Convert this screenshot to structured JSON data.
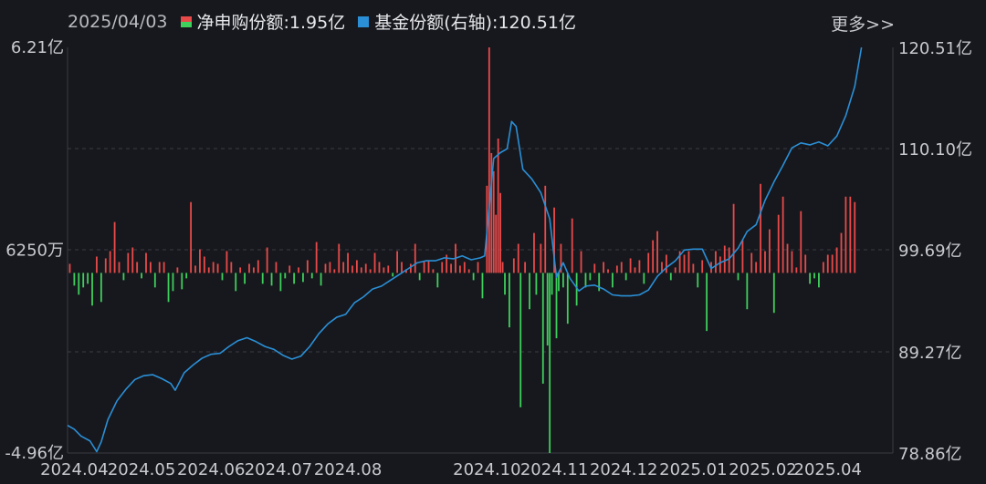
{
  "header": {
    "date": "2025/04/03",
    "more_label": "更多>>"
  },
  "legend": [
    {
      "label": "净申购份额:1.95亿",
      "color": "#e84a4a"
    },
    {
      "label": "基金份额(右轴):120.51亿",
      "color": "#2a8fd6"
    }
  ],
  "chart_data": {
    "type": "bar+line",
    "left_axis": {
      "ticks": [
        "6.21亿",
        "6250万",
        "-4.96亿"
      ],
      "min": -4.96,
      "max": 6.21,
      "unit": "亿"
    },
    "right_axis": {
      "ticks": [
        "120.51亿",
        "110.10亿",
        "99.69亿",
        "89.27亿",
        "78.86亿"
      ],
      "min": 78.86,
      "max": 120.51,
      "unit": "亿"
    },
    "x_ticks": [
      "2024.04",
      "2024.05",
      "2024.06",
      "2024.07",
      "2024.08",
      "2024.10",
      "2024.11",
      "2024.12",
      "2025.01",
      "2025.02",
      "2025.04"
    ],
    "x_tick_days": [
      3,
      33,
      64,
      94,
      125,
      187,
      217,
      248,
      279,
      310,
      339
    ],
    "x_range_days": [
      0,
      368
    ],
    "grid": "dashed horizontal",
    "series": [
      {
        "name": "净申购份额",
        "kind": "bar",
        "positive_color": "#e84a4a",
        "negative_color": "#3ecf5c",
        "points": [
          [
            1,
            0.25
          ],
          [
            3,
            -0.35
          ],
          [
            5,
            -0.6
          ],
          [
            7,
            -0.4
          ],
          [
            9,
            -0.3
          ],
          [
            11,
            -0.9
          ],
          [
            13,
            0.45
          ],
          [
            15,
            -0.8
          ],
          [
            17,
            0.4
          ],
          [
            19,
            0.6
          ],
          [
            21,
            1.4
          ],
          [
            23,
            0.3
          ],
          [
            25,
            -0.2
          ],
          [
            27,
            0.55
          ],
          [
            29,
            0.7
          ],
          [
            31,
            0.3
          ],
          [
            33,
            -0.15
          ],
          [
            35,
            0.55
          ],
          [
            37,
            0.3
          ],
          [
            39,
            -0.4
          ],
          [
            41,
            0.3
          ],
          [
            43,
            0.3
          ],
          [
            45,
            -0.8
          ],
          [
            47,
            -0.5
          ],
          [
            49,
            0.15
          ],
          [
            51,
            -0.45
          ],
          [
            53,
            -0.15
          ],
          [
            55,
            1.95
          ],
          [
            57,
            0.2
          ],
          [
            59,
            0.65
          ],
          [
            61,
            0.45
          ],
          [
            63,
            0.15
          ],
          [
            65,
            0.3
          ],
          [
            67,
            0.25
          ],
          [
            69,
            -0.2
          ],
          [
            71,
            0.6
          ],
          [
            73,
            0.3
          ],
          [
            75,
            -0.5
          ],
          [
            77,
            0.15
          ],
          [
            79,
            -0.3
          ],
          [
            81,
            0.25
          ],
          [
            83,
            0.15
          ],
          [
            85,
            0.35
          ],
          [
            87,
            -0.3
          ],
          [
            89,
            0.7
          ],
          [
            91,
            -0.35
          ],
          [
            93,
            0.3
          ],
          [
            95,
            -0.5
          ],
          [
            97,
            -0.15
          ],
          [
            99,
            0.2
          ],
          [
            101,
            -0.3
          ],
          [
            103,
            0.15
          ],
          [
            105,
            -0.25
          ],
          [
            107,
            0.35
          ],
          [
            109,
            -0.15
          ],
          [
            111,
            0.85
          ],
          [
            113,
            -0.35
          ],
          [
            115,
            0.25
          ],
          [
            117,
            0.3
          ],
          [
            119,
            0.1
          ],
          [
            121,
            0.8
          ],
          [
            123,
            0.3
          ],
          [
            125,
            0.55
          ],
          [
            127,
            0.2
          ],
          [
            129,
            0.35
          ],
          [
            131,
            0.15
          ],
          [
            133,
            0.25
          ],
          [
            135,
            0.1
          ],
          [
            137,
            0.55
          ],
          [
            139,
            0.3
          ],
          [
            141,
            0.15
          ],
          [
            143,
            0.2
          ],
          [
            145,
            -0.1
          ],
          [
            147,
            0.6
          ],
          [
            149,
            0.3
          ],
          [
            151,
            0.1
          ],
          [
            153,
            0.25
          ],
          [
            155,
            0.8
          ],
          [
            157,
            -0.2
          ],
          [
            159,
            0.3
          ],
          [
            161,
            0.35
          ],
          [
            163,
            0.1
          ],
          [
            165,
            -0.4
          ],
          [
            167,
            0.3
          ],
          [
            169,
            0.5
          ],
          [
            171,
            0.25
          ],
          [
            173,
            0.8
          ],
          [
            175,
            0.2
          ],
          [
            177,
            0.3
          ],
          [
            179,
            0.1
          ],
          [
            181,
            -0.2
          ],
          [
            183,
            0.3
          ],
          [
            185,
            -0.7
          ],
          [
            187,
            2.4
          ],
          [
            188,
            6.21
          ],
          [
            189,
            3.3
          ],
          [
            190,
            2.8
          ],
          [
            191,
            1.6
          ],
          [
            192,
            3.7
          ],
          [
            193,
            2.2
          ],
          [
            194,
            0.3
          ],
          [
            195,
            -0.6
          ],
          [
            197,
            -1.5
          ],
          [
            199,
            0.4
          ],
          [
            201,
            0.8
          ],
          [
            202,
            -3.7
          ],
          [
            204,
            0.3
          ],
          [
            206,
            -1.0
          ],
          [
            208,
            1.1
          ],
          [
            209,
            -0.6
          ],
          [
            211,
            0.8
          ],
          [
            212,
            -3.05
          ],
          [
            213,
            2.4
          ],
          [
            214,
            -2.0
          ],
          [
            215,
            -4.96
          ],
          [
            216,
            -0.6
          ],
          [
            217,
            1.8
          ],
          [
            218,
            -1.8
          ],
          [
            219,
            -0.5
          ],
          [
            220,
            0.8
          ],
          [
            221,
            -0.4
          ],
          [
            223,
            -1.4
          ],
          [
            225,
            1.5
          ],
          [
            227,
            -0.9
          ],
          [
            229,
            0.6
          ],
          [
            231,
            -0.4
          ],
          [
            233,
            -0.2
          ],
          [
            235,
            0.25
          ],
          [
            237,
            -0.5
          ],
          [
            239,
            0.3
          ],
          [
            241,
            0.1
          ],
          [
            243,
            -0.4
          ],
          [
            245,
            0.2
          ],
          [
            247,
            0.3
          ],
          [
            249,
            -0.2
          ],
          [
            251,
            0.4
          ],
          [
            253,
            0.15
          ],
          [
            255,
            0.35
          ],
          [
            257,
            -0.3
          ],
          [
            259,
            0.55
          ],
          [
            261,
            0.9
          ],
          [
            263,
            1.15
          ],
          [
            265,
            0.3
          ],
          [
            267,
            0.5
          ],
          [
            269,
            -0.2
          ],
          [
            271,
            0.15
          ],
          [
            273,
            0.6
          ],
          [
            275,
            0.5
          ],
          [
            277,
            0.6
          ],
          [
            279,
            0.25
          ],
          [
            281,
            -0.4
          ],
          [
            283,
            0.35
          ],
          [
            285,
            -1.6
          ],
          [
            287,
            0.3
          ],
          [
            289,
            0.6
          ],
          [
            291,
            0.45
          ],
          [
            293,
            0.75
          ],
          [
            295,
            0.7
          ],
          [
            297,
            1.9
          ],
          [
            299,
            -0.2
          ],
          [
            301,
            0.9
          ],
          [
            303,
            -1.0
          ],
          [
            305,
            0.55
          ],
          [
            307,
            0.3
          ],
          [
            309,
            2.45
          ],
          [
            311,
            0.6
          ],
          [
            313,
            1.2
          ],
          [
            315,
            -1.1
          ],
          [
            317,
            1.6
          ],
          [
            319,
            2.1
          ],
          [
            321,
            0.8
          ],
          [
            323,
            0.6
          ],
          [
            325,
            0.15
          ],
          [
            327,
            1.7
          ],
          [
            329,
            0.5
          ],
          [
            331,
            -0.3
          ],
          [
            333,
            -0.15
          ],
          [
            335,
            -0.4
          ],
          [
            337,
            0.3
          ],
          [
            339,
            0.5
          ],
          [
            341,
            0.5
          ],
          [
            343,
            0.7
          ],
          [
            345,
            1.1
          ],
          [
            347,
            2.1
          ],
          [
            349,
            2.1
          ],
          [
            351,
            1.95
          ]
        ]
      },
      {
        "name": "基金份额",
        "kind": "line",
        "color": "#2a8fd6",
        "points": [
          [
            0,
            81.7
          ],
          [
            3,
            81.3
          ],
          [
            6,
            80.6
          ],
          [
            10,
            80.1
          ],
          [
            13,
            79.0
          ],
          [
            15,
            80.0
          ],
          [
            18,
            82.3
          ],
          [
            22,
            84.2
          ],
          [
            26,
            85.4
          ],
          [
            30,
            86.4
          ],
          [
            34,
            86.8
          ],
          [
            38,
            86.9
          ],
          [
            42,
            86.5
          ],
          [
            46,
            86.0
          ],
          [
            48,
            85.3
          ],
          [
            52,
            87.1
          ],
          [
            56,
            87.9
          ],
          [
            60,
            88.6
          ],
          [
            64,
            89.0
          ],
          [
            68,
            89.1
          ],
          [
            72,
            89.8
          ],
          [
            76,
            90.4
          ],
          [
            80,
            90.7
          ],
          [
            84,
            90.3
          ],
          [
            88,
            89.8
          ],
          [
            92,
            89.5
          ],
          [
            96,
            88.9
          ],
          [
            100,
            88.5
          ],
          [
            104,
            88.8
          ],
          [
            108,
            89.8
          ],
          [
            112,
            91.1
          ],
          [
            116,
            92.1
          ],
          [
            120,
            92.8
          ],
          [
            124,
            93.1
          ],
          [
            128,
            94.3
          ],
          [
            132,
            94.9
          ],
          [
            136,
            95.7
          ],
          [
            140,
            96.0
          ],
          [
            144,
            96.6
          ],
          [
            148,
            97.2
          ],
          [
            152,
            97.8
          ],
          [
            156,
            98.4
          ],
          [
            160,
            98.6
          ],
          [
            164,
            98.6
          ],
          [
            168,
            98.9
          ],
          [
            172,
            98.8
          ],
          [
            176,
            99.1
          ],
          [
            180,
            98.7
          ],
          [
            184,
            98.9
          ],
          [
            186,
            99.1
          ],
          [
            188,
            104.0
          ],
          [
            190,
            109.1
          ],
          [
            193,
            109.7
          ],
          [
            196,
            110.1
          ],
          [
            198,
            112.9
          ],
          [
            200,
            112.4
          ],
          [
            203,
            108.0
          ],
          [
            207,
            107.0
          ],
          [
            211,
            105.6
          ],
          [
            215,
            102.9
          ],
          [
            218,
            96.9
          ],
          [
            221,
            98.4
          ],
          [
            224,
            96.8
          ],
          [
            228,
            95.5
          ],
          [
            231,
            96.0
          ],
          [
            235,
            96.1
          ],
          [
            239,
            95.7
          ],
          [
            243,
            95.1
          ],
          [
            247,
            95.0
          ],
          [
            251,
            95.0
          ],
          [
            255,
            95.1
          ],
          [
            259,
            95.6
          ],
          [
            263,
            97.0
          ],
          [
            267,
            97.9
          ],
          [
            271,
            98.6
          ],
          [
            275,
            99.7
          ],
          [
            279,
            99.8
          ],
          [
            283,
            99.8
          ],
          [
            287,
            97.8
          ],
          [
            291,
            98.4
          ],
          [
            295,
            98.8
          ],
          [
            299,
            99.9
          ],
          [
            303,
            101.6
          ],
          [
            307,
            102.3
          ],
          [
            311,
            104.8
          ],
          [
            315,
            106.7
          ],
          [
            319,
            108.4
          ],
          [
            323,
            110.2
          ],
          [
            327,
            110.7
          ],
          [
            331,
            110.5
          ],
          [
            335,
            110.8
          ],
          [
            339,
            110.4
          ],
          [
            343,
            111.4
          ],
          [
            347,
            113.5
          ],
          [
            351,
            116.5
          ],
          [
            354,
            120.51
          ]
        ]
      }
    ]
  }
}
